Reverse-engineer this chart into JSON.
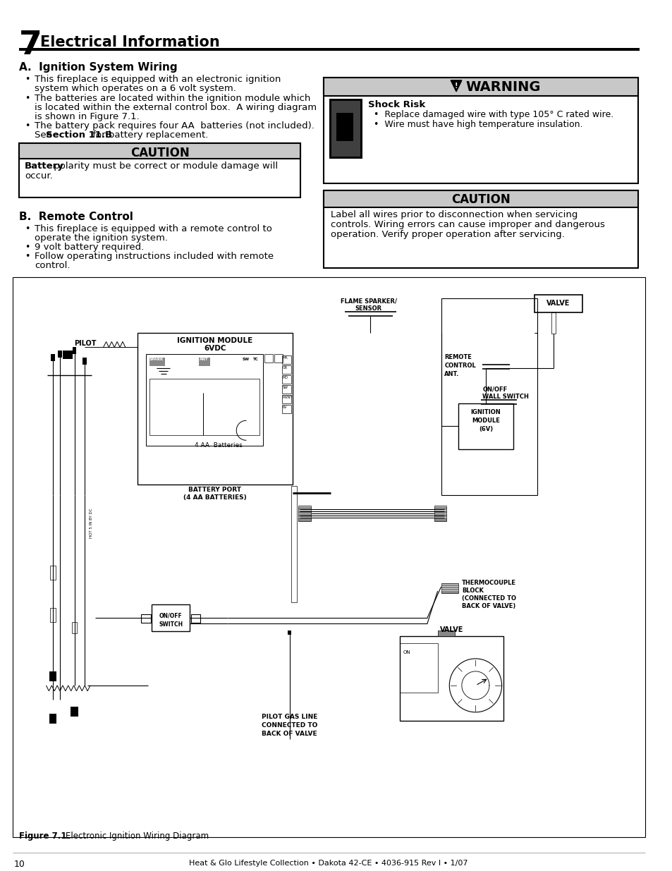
{
  "page_number": "10",
  "footer_text": "Heat & Glo Lifestyle Collection • Dakota 42-CE • 4036-915 Rev I • 1/07",
  "chapter_number": "7",
  "chapter_title": "Electrical Information",
  "section_a_title": "A.  Ignition System Wiring",
  "bullet_a1_line1": "This fireplace is equipped with an electronic ignition",
  "bullet_a1_line2": "system which operates on a 6 volt system.",
  "bullet_a2_line1": "The batteries are located within the ignition module which",
  "bullet_a2_line2": "is located within the external control box.  A wiring diagram",
  "bullet_a2_line3": "is shown in Figure 7.1.",
  "bullet_a3_line1": "The battery pack requires four AA  batteries (not included).",
  "bullet_a3_line2_pre": "See ",
  "bullet_a3_line2_bold": "Section 11.B",
  "bullet_a3_line2_post": " for battery replacement.",
  "caution1_title": "CAUTION",
  "caution1_bold": "Battery",
  "caution1_rest_line1": " polarity must be correct or module damage will",
  "caution1_rest_line2": "occur.",
  "section_b_title": "B.  Remote Control",
  "bullet_b1_line1": "This fireplace is equipped with a remote control to",
  "bullet_b1_line2": "operate the ignition system.",
  "bullet_b2": "9 volt battery required.",
  "bullet_b3_line1": "Follow operating instructions included with remote",
  "bullet_b3_line2": "control.",
  "warning_title": "WARNING",
  "warning_shock": "Shock Risk",
  "warning_b1": "Replace damaged wire with type 105° C rated wire.",
  "warning_b2": "Wire must have high temperature insulation.",
  "caution2_title": "CAUTION",
  "caution2_line1": "Label all wires prior to disconnection when servicing",
  "caution2_line2": "controls. Wiring errors can cause improper and dangerous",
  "caution2_line3": "operation. Verify proper operation after servicing.",
  "fig_bold": "Figure 7.1",
  "fig_rest": "    Electronic Ignition Wiring Diagram",
  "bg_color": "#ffffff"
}
